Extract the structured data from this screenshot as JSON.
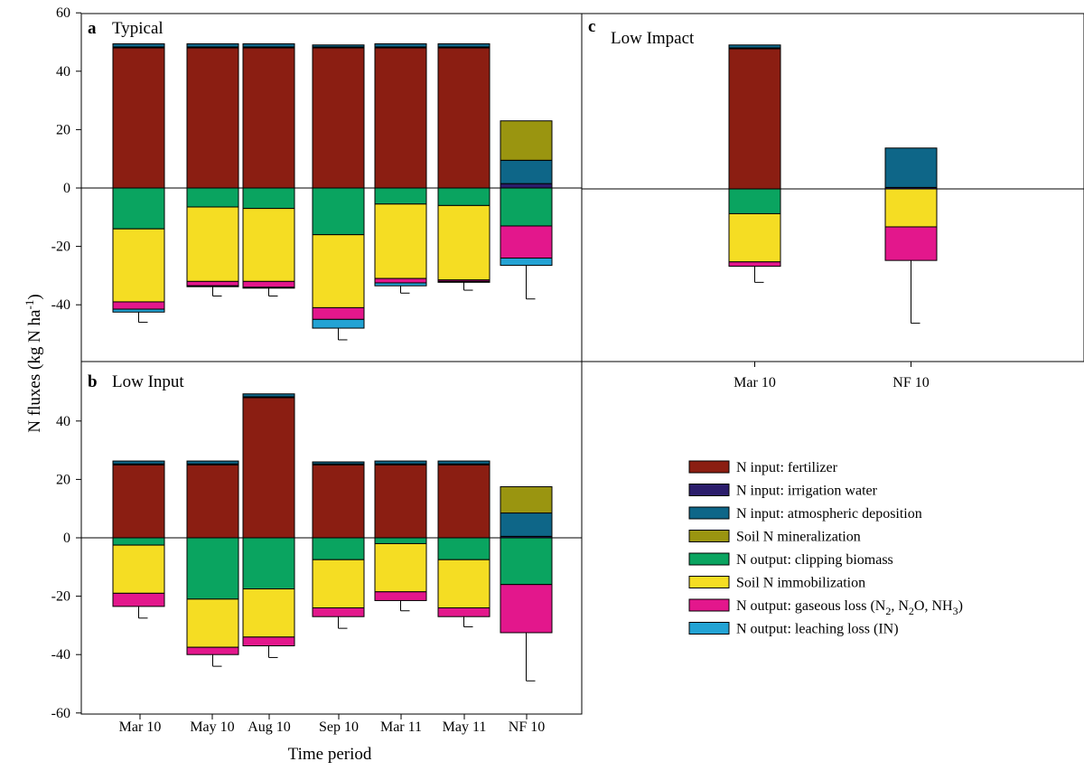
{
  "chart_data": {
    "type": "bar",
    "stacked": true,
    "xlabel": "Time period",
    "ylabel": "N fluxes (kg N ha",
    "ylabel_sup": "-1",
    "ylabel_close": ")",
    "legend": [
      {
        "key": "fert",
        "label": "N input: fertilizer",
        "color": "#8b1e12"
      },
      {
        "key": "irr",
        "label": "N input: irrigation water",
        "color": "#2b1d6b"
      },
      {
        "key": "atm",
        "label": "N input: atmospheric deposition",
        "color": "#0e6688"
      },
      {
        "key": "min",
        "label": "Soil N mineralization",
        "color": "#9a9510"
      },
      {
        "key": "clip",
        "label": "N output: clipping biomass",
        "color": "#0aa460"
      },
      {
        "key": "imm",
        "label": "Soil N immobilization",
        "color": "#f5dd23"
      },
      {
        "key": "gas",
        "label": "N output: gaseous loss (N",
        "label_parts": [
          "N output: gaseous loss (N",
          "2",
          ", N",
          "2",
          "O, NH",
          "3",
          ")"
        ],
        "color": "#e3178c"
      },
      {
        "key": "leach",
        "label": "N output: leaching loss (IN)",
        "color": "#23a3d4"
      }
    ],
    "panels": [
      {
        "letter": "a",
        "title": "Typical",
        "ylim": [
          -60,
          60
        ],
        "yticks": [
          -40,
          -20,
          0,
          20,
          40,
          60
        ],
        "categories": [
          "Mar 10",
          "May 10",
          "Aug 10",
          "Sep 10",
          "Mar 11",
          "May 11",
          "NF 10"
        ],
        "show_xticks": false,
        "positive": [
          [
            {
              "k": "fert",
              "v": 48
            },
            {
              "k": "irr",
              "v": 0.3
            },
            {
              "k": "atm",
              "v": 1.1
            }
          ],
          [
            {
              "k": "fert",
              "v": 48
            },
            {
              "k": "irr",
              "v": 0.3
            },
            {
              "k": "atm",
              "v": 1.1
            }
          ],
          [
            {
              "k": "fert",
              "v": 48
            },
            {
              "k": "irr",
              "v": 0.3
            },
            {
              "k": "atm",
              "v": 1.1
            }
          ],
          [
            {
              "k": "fert",
              "v": 48
            },
            {
              "k": "irr",
              "v": 0.3
            },
            {
              "k": "atm",
              "v": 0.7
            }
          ],
          [
            {
              "k": "fert",
              "v": 48
            },
            {
              "k": "irr",
              "v": 0.3
            },
            {
              "k": "atm",
              "v": 1.1
            }
          ],
          [
            {
              "k": "fert",
              "v": 48
            },
            {
              "k": "irr",
              "v": 0.3
            },
            {
              "k": "atm",
              "v": 1.1
            }
          ],
          [
            {
              "k": "irr",
              "v": 1.5
            },
            {
              "k": "atm",
              "v": 8
            },
            {
              "k": "min",
              "v": 13.5
            }
          ]
        ],
        "negative": [
          [
            {
              "k": "clip",
              "v": 14
            },
            {
              "k": "imm",
              "v": 25
            },
            {
              "k": "gas",
              "v": 2.5
            },
            {
              "k": "leach",
              "v": 1
            }
          ],
          [
            {
              "k": "clip",
              "v": 6.5
            },
            {
              "k": "imm",
              "v": 25.5
            },
            {
              "k": "gas",
              "v": 1.5
            },
            {
              "k": "leach",
              "v": 0.3
            }
          ],
          [
            {
              "k": "clip",
              "v": 7
            },
            {
              "k": "imm",
              "v": 25
            },
            {
              "k": "gas",
              "v": 2
            },
            {
              "k": "leach",
              "v": 0.3
            }
          ],
          [
            {
              "k": "clip",
              "v": 16
            },
            {
              "k": "imm",
              "v": 25
            },
            {
              "k": "gas",
              "v": 4
            },
            {
              "k": "leach",
              "v": 3
            }
          ],
          [
            {
              "k": "clip",
              "v": 5.5
            },
            {
              "k": "imm",
              "v": 25.5
            },
            {
              "k": "gas",
              "v": 1.5
            },
            {
              "k": "leach",
              "v": 1
            }
          ],
          [
            {
              "k": "clip",
              "v": 6
            },
            {
              "k": "imm",
              "v": 25.5
            },
            {
              "k": "gas",
              "v": 0.5
            },
            {
              "k": "leach",
              "v": 0.3
            }
          ],
          [
            {
              "k": "clip",
              "v": 13
            },
            {
              "k": "gas",
              "v": 11
            },
            {
              "k": "leach",
              "v": 2.5
            }
          ]
        ],
        "error_low": [
          -46,
          -37,
          -37,
          -52,
          -36,
          -35,
          -38
        ]
      },
      {
        "letter": "b",
        "title": "Low Input",
        "ylim": [
          -60,
          60
        ],
        "yticks": [
          -60,
          -40,
          -20,
          0,
          20,
          40
        ],
        "categories": [
          "Mar 10",
          "May 10",
          "Aug 10",
          "Sep 10",
          "Mar 11",
          "May 11",
          "NF 10"
        ],
        "show_xticks": true,
        "positive": [
          [
            {
              "k": "fert",
              "v": 25
            },
            {
              "k": "irr",
              "v": 0.3
            },
            {
              "k": "atm",
              "v": 1
            }
          ],
          [
            {
              "k": "fert",
              "v": 25
            },
            {
              "k": "irr",
              "v": 0.3
            },
            {
              "k": "atm",
              "v": 1
            }
          ],
          [
            {
              "k": "fert",
              "v": 48
            },
            {
              "k": "irr",
              "v": 0.3
            },
            {
              "k": "atm",
              "v": 1
            }
          ],
          [
            {
              "k": "fert",
              "v": 25
            },
            {
              "k": "irr",
              "v": 0.3
            },
            {
              "k": "atm",
              "v": 0.7
            }
          ],
          [
            {
              "k": "fert",
              "v": 25
            },
            {
              "k": "irr",
              "v": 0.3
            },
            {
              "k": "atm",
              "v": 1
            }
          ],
          [
            {
              "k": "fert",
              "v": 25
            },
            {
              "k": "irr",
              "v": 0.3
            },
            {
              "k": "atm",
              "v": 1
            }
          ],
          [
            {
              "k": "irr",
              "v": 0.5
            },
            {
              "k": "atm",
              "v": 8
            },
            {
              "k": "min",
              "v": 9
            }
          ]
        ],
        "negative": [
          [
            {
              "k": "clip",
              "v": 2.5
            },
            {
              "k": "imm",
              "v": 16.5
            },
            {
              "k": "gas",
              "v": 4.5
            }
          ],
          [
            {
              "k": "clip",
              "v": 21
            },
            {
              "k": "imm",
              "v": 16.5
            },
            {
              "k": "gas",
              "v": 2.5
            }
          ],
          [
            {
              "k": "clip",
              "v": 17.5
            },
            {
              "k": "imm",
              "v": 16.5
            },
            {
              "k": "gas",
              "v": 3
            }
          ],
          [
            {
              "k": "clip",
              "v": 7.5
            },
            {
              "k": "imm",
              "v": 16.5
            },
            {
              "k": "gas",
              "v": 3
            }
          ],
          [
            {
              "k": "clip",
              "v": 2
            },
            {
              "k": "imm",
              "v": 16.5
            },
            {
              "k": "gas",
              "v": 3
            }
          ],
          [
            {
              "k": "clip",
              "v": 7.5
            },
            {
              "k": "imm",
              "v": 16.5
            },
            {
              "k": "gas",
              "v": 3
            }
          ],
          [
            {
              "k": "clip",
              "v": 16
            },
            {
              "k": "gas",
              "v": 16.5
            }
          ]
        ],
        "error_low": [
          -27.5,
          -44,
          -41,
          -31,
          -25,
          -30.5,
          -49
        ]
      },
      {
        "letter": "c",
        "title": "Low Impact",
        "ylim": [
          -60,
          60
        ],
        "yticks": [],
        "categories": [
          "Mar 10",
          "NF 10"
        ],
        "show_xticks": true,
        "positive": [
          [
            {
              "k": "fert",
              "v": 48
            },
            {
              "k": "irr",
              "v": 0.3
            },
            {
              "k": "atm",
              "v": 1
            }
          ],
          [
            {
              "k": "irr",
              "v": 0.5
            },
            {
              "k": "atm",
              "v": 13.5
            }
          ]
        ],
        "negative": [
          [
            {
              "k": "clip",
              "v": 8.5
            },
            {
              "k": "imm",
              "v": 16.5
            },
            {
              "k": "gas",
              "v": 1.5
            }
          ],
          [
            {
              "k": "imm",
              "v": 13
            },
            {
              "k": "gas",
              "v": 11.5
            }
          ]
        ],
        "error_low": [
          -32,
          -46
        ]
      }
    ]
  }
}
